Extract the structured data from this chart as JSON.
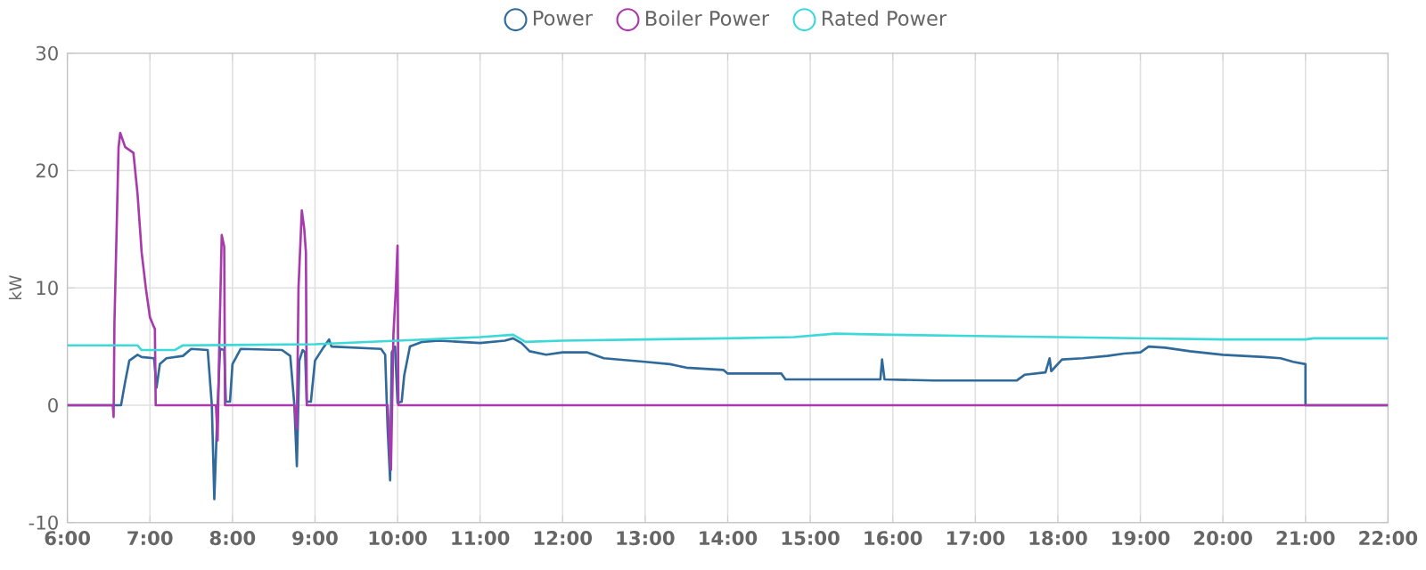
{
  "chart_data": {
    "type": "line",
    "ylabel": "kW",
    "legend": "top",
    "grid": true,
    "marker": "none",
    "line_style": "solid",
    "xlim": [
      6,
      22
    ],
    "xticks": [
      {
        "value": 6,
        "label": "6:00"
      },
      {
        "value": 7,
        "label": "7:00"
      },
      {
        "value": 8,
        "label": "8:00"
      },
      {
        "value": 9,
        "label": "9:00"
      },
      {
        "value": 10,
        "label": "10:00"
      },
      {
        "value": 11,
        "label": "11:00"
      },
      {
        "value": 12,
        "label": "12:00"
      },
      {
        "value": 13,
        "label": "13:00"
      },
      {
        "value": 14,
        "label": "14:00"
      },
      {
        "value": 15,
        "label": "15:00"
      },
      {
        "value": 16,
        "label": "16:00"
      },
      {
        "value": 17,
        "label": "17:00"
      },
      {
        "value": 18,
        "label": "18:00"
      },
      {
        "value": 19,
        "label": "19:00"
      },
      {
        "value": 20,
        "label": "20:00"
      },
      {
        "value": 21,
        "label": "21:00"
      },
      {
        "value": 22,
        "label": "22:00"
      }
    ],
    "ylim": [
      -10,
      30
    ],
    "yticks": [
      -10,
      0,
      10,
      20,
      30
    ],
    "series": [
      {
        "name": "Power",
        "color": "#2f6a9b",
        "x": [
          6.0,
          6.65,
          6.7,
          6.75,
          6.85,
          6.9,
          7.05,
          7.08,
          7.12,
          7.2,
          7.4,
          7.5,
          7.7,
          7.75,
          7.78,
          7.82,
          7.85,
          7.9,
          7.92,
          7.97,
          8.0,
          8.1,
          8.6,
          8.7,
          8.75,
          8.78,
          8.81,
          8.85,
          8.88,
          8.9,
          8.95,
          9.0,
          9.1,
          9.17,
          9.2,
          9.8,
          9.85,
          9.88,
          9.91,
          9.93,
          9.97,
          10.0,
          10.05,
          10.08,
          10.15,
          10.3,
          10.5,
          11.0,
          11.3,
          11.4,
          11.5,
          11.6,
          11.8,
          12.0,
          12.3,
          12.5,
          13.0,
          13.3,
          13.5,
          13.95,
          14.0,
          14.65,
          14.7,
          15.85,
          15.87,
          15.9,
          16.5,
          17.5,
          17.6,
          17.85,
          17.9,
          17.92,
          18.05,
          18.3,
          18.6,
          18.8,
          19.0,
          19.1,
          19.3,
          19.6,
          20.0,
          20.5,
          20.7,
          20.85,
          21.0,
          21.0,
          22.0
        ],
        "values": [
          0,
          0,
          2,
          3.8,
          4.3,
          4.1,
          4.0,
          1.5,
          3.5,
          4.0,
          4.2,
          4.8,
          4.7,
          0,
          -8,
          0,
          4.8,
          4.7,
          0.3,
          0.3,
          3.5,
          4.8,
          4.7,
          4.2,
          0,
          -5.2,
          3.8,
          4.7,
          4.5,
          0.3,
          0.3,
          3.8,
          4.9,
          5.6,
          5.0,
          4.8,
          4.3,
          -2,
          -6.4,
          4.5,
          5,
          0.2,
          0.3,
          2.5,
          5.0,
          5.4,
          5.5,
          5.3,
          5.5,
          5.7,
          5.3,
          4.6,
          4.3,
          4.5,
          4.5,
          4.0,
          3.7,
          3.5,
          3.2,
          3.0,
          2.7,
          2.7,
          2.2,
          2.2,
          3.9,
          2.2,
          2.1,
          2.1,
          2.6,
          2.8,
          4.0,
          2.9,
          3.9,
          4.0,
          4.2,
          4.4,
          4.5,
          5.0,
          4.9,
          4.6,
          4.3,
          4.1,
          4.0,
          3.7,
          3.5,
          0,
          0
        ]
      },
      {
        "name": "Boiler Power",
        "color": "#a93aad",
        "x": [
          6.0,
          6.55,
          6.56,
          6.57,
          6.62,
          6.64,
          6.7,
          6.8,
          6.85,
          6.9,
          6.95,
          7.0,
          7.04,
          7.06,
          7.07,
          7.8,
          7.82,
          7.84,
          7.87,
          7.9,
          7.91,
          8.75,
          8.78,
          8.8,
          8.84,
          8.87,
          8.89,
          8.9,
          9.88,
          9.92,
          9.95,
          9.98,
          10.0,
          10.01,
          22.0
        ],
        "values": [
          0,
          0,
          -1,
          7,
          22,
          23.2,
          22,
          21.5,
          18,
          13,
          10,
          7.5,
          6.8,
          6.5,
          0,
          0,
          -3,
          5,
          14.5,
          13.5,
          0,
          0,
          -2,
          10,
          16.6,
          15,
          13,
          0,
          0,
          -5.5,
          6,
          10,
          13.6,
          0,
          0
        ]
      },
      {
        "name": "Rated Power",
        "color": "#3dd8d8",
        "x": [
          6.0,
          6.85,
          6.9,
          7.3,
          7.4,
          9.0,
          10.0,
          11.0,
          11.4,
          11.55,
          12.0,
          13.0,
          14.0,
          14.8,
          15.3,
          16.0,
          17.0,
          18.0,
          19.0,
          20.0,
          21.0,
          21.1,
          22.0
        ],
        "values": [
          5.1,
          5.1,
          4.7,
          4.7,
          5.1,
          5.2,
          5.5,
          5.8,
          6.0,
          5.4,
          5.5,
          5.6,
          5.7,
          5.8,
          6.1,
          6.0,
          5.9,
          5.8,
          5.7,
          5.6,
          5.6,
          5.7,
          5.7
        ]
      }
    ]
  }
}
